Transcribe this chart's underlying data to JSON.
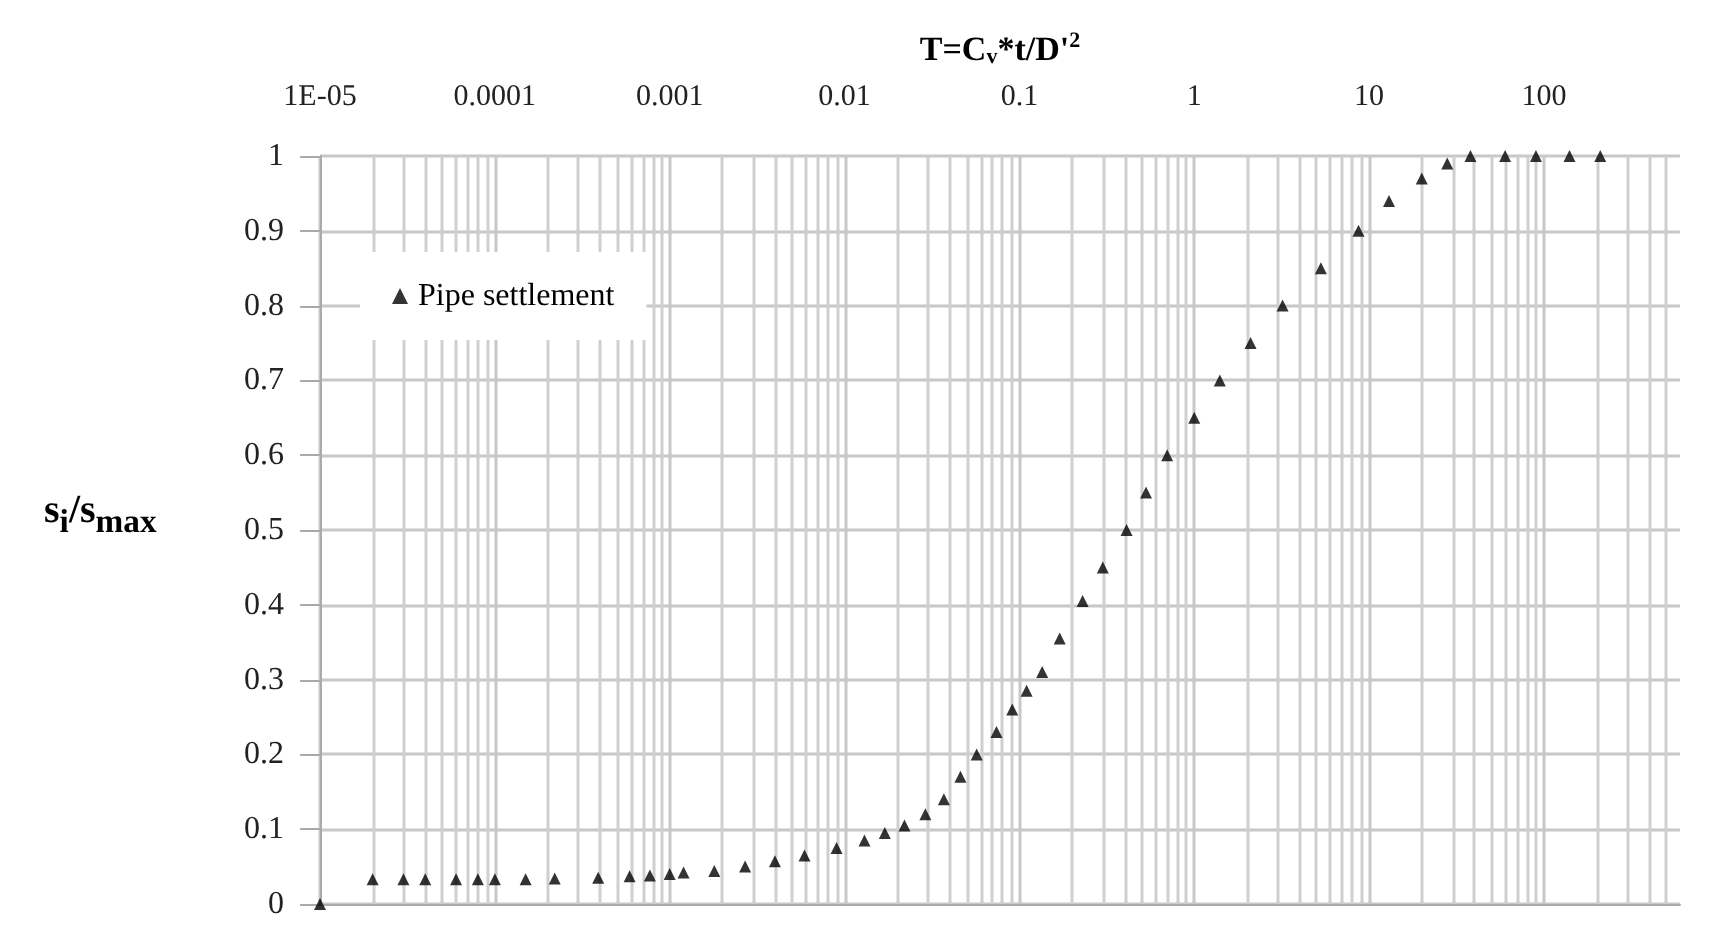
{
  "chart_data": {
    "type": "scatter",
    "xlabel": "T=C$_{v}$*t/D'$^{2}$",
    "ylabel": "s$_{i}$/s$_{max}$",
    "log": "x",
    "xlim": [
      1e-05,
      600
    ],
    "xticks": [
      {
        "value": 1e-05,
        "label": "1E-05"
      },
      0.0001,
      0.001,
      0.01,
      0.1,
      1,
      10,
      100
    ],
    "ylim": [
      0,
      1
    ],
    "yticks": [
      0,
      0.1,
      0.2,
      0.3,
      0.4,
      0.5,
      0.6,
      0.7,
      0.8,
      0.9,
      1
    ],
    "grid": true,
    "legend": "top left",
    "marker": "triangle",
    "series": [
      {
        "name": "Pipe settlement",
        "color": "#000000",
        "x": [
          1e-05,
          2e-05,
          3e-05,
          4e-05,
          6e-05,
          8e-05,
          0.0001,
          0.00015,
          0.00022,
          0.00039,
          0.00059,
          0.00077,
          0.001,
          0.0012,
          0.0018,
          0.0027,
          0.004,
          0.0059,
          0.009,
          0.013,
          0.017,
          0.022,
          0.029,
          0.037,
          0.046,
          0.057,
          0.074,
          0.091,
          0.11,
          0.135,
          0.17,
          0.23,
          0.3,
          0.41,
          0.53,
          0.7,
          1.0,
          1.4,
          2.1,
          3.2,
          5.3,
          8.7,
          13,
          20,
          28,
          38,
          60,
          90,
          140,
          210
        ],
        "values": [
          0,
          0.033,
          0.033,
          0.033,
          0.033,
          0.033,
          0.033,
          0.033,
          0.034,
          0.035,
          0.037,
          0.038,
          0.04,
          0.042,
          0.044,
          0.05,
          0.057,
          0.065,
          0.075,
          0.085,
          0.095,
          0.105,
          0.12,
          0.14,
          0.17,
          0.2,
          0.23,
          0.26,
          0.285,
          0.31,
          0.355,
          0.405,
          0.45,
          0.5,
          0.55,
          0.6,
          0.65,
          0.7,
          0.75,
          0.8,
          0.85,
          0.9,
          0.94,
          0.97,
          0.99,
          1,
          1,
          1,
          1,
          1
        ]
      }
    ]
  }
}
